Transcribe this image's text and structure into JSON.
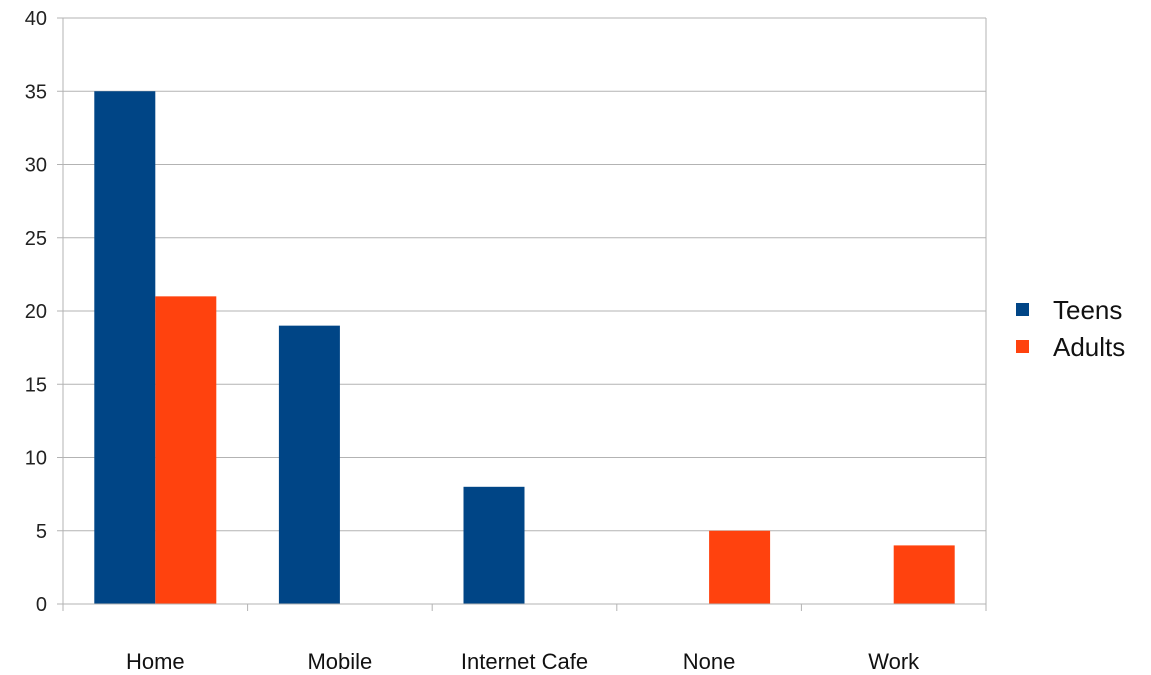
{
  "chart_data": {
    "type": "bar",
    "categories": [
      "Home",
      "Mobile",
      "Internet Cafe",
      "None",
      "Work"
    ],
    "series": [
      {
        "name": "Teens",
        "color": "#004586",
        "values": [
          35,
          19,
          8,
          0,
          0
        ]
      },
      {
        "name": "Adults",
        "color": "#ff420e",
        "values": [
          21,
          0,
          0,
          5,
          4
        ]
      }
    ],
    "ylim": [
      0,
      40
    ],
    "yticks": [
      0,
      5,
      10,
      15,
      20,
      25,
      30,
      35,
      40
    ],
    "grid": true,
    "legend_position": "right"
  }
}
